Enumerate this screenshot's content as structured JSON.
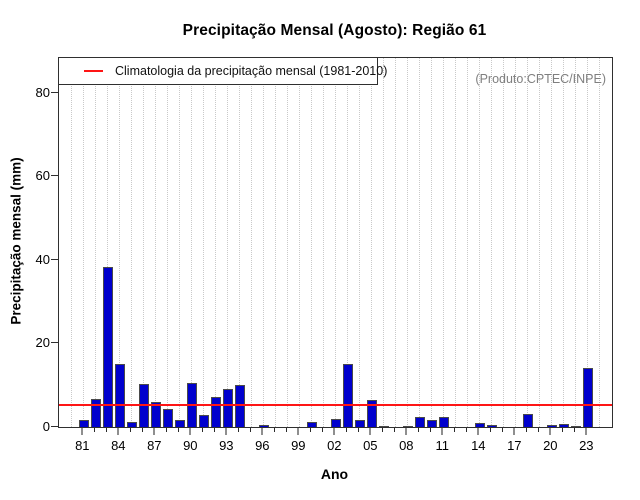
{
  "header": {
    "title": "Precipitação Mensal (Agosto): Região 61"
  },
  "watermark": {
    "text": "(Produto:CPTEC/INPE)"
  },
  "chart_data": {
    "type": "bar",
    "title": "Precipitação Mensal (Agosto): Região 61",
    "xlabel": "Ano",
    "ylabel": "Precipitação mensal (mm)",
    "ylim": [
      0,
      88.4
    ],
    "yticks": [
      0,
      20,
      40,
      60,
      80
    ],
    "grid": "vertical-dotted",
    "legend_position": "top-left",
    "years": [
      1981,
      1982,
      1983,
      1984,
      1985,
      1986,
      1987,
      1988,
      1989,
      1990,
      1991,
      1992,
      1993,
      1994,
      1995,
      1996,
      1997,
      1998,
      1999,
      2000,
      2001,
      2002,
      2003,
      2004,
      2005,
      2006,
      2007,
      2008,
      2009,
      2010,
      2011,
      2012,
      2013,
      2014,
      2015,
      2016,
      2017,
      2018,
      2019,
      2020,
      2021,
      2022,
      2023
    ],
    "values": [
      1.6,
      6.7,
      38.3,
      15.1,
      1.3,
      10.2,
      6.0,
      4.2,
      1.7,
      10.5,
      2.8,
      7.2,
      9.0,
      10.0,
      0,
      0.4,
      0,
      0,
      0,
      1.1,
      0,
      1.9,
      15.2,
      1.8,
      6.4,
      0.15,
      0,
      0.35,
      2.3,
      1.7,
      2.4,
      0,
      0,
      0.9,
      0.5,
      0,
      0,
      3.0,
      0,
      0.5,
      0.8,
      0.1,
      14.2
    ],
    "x_label_every": 3,
    "x_tick_labels": [
      "81",
      "84",
      "87",
      "90",
      "93",
      "96",
      "99",
      "02",
      "05",
      "08",
      "11",
      "14",
      "17",
      "20",
      "23"
    ],
    "climatology": {
      "value": 5.2,
      "label": "Climatologia da precipitação mensal (1981-2010)",
      "color": "#fe1515"
    },
    "colors": {
      "bar_fill": "#0000CD",
      "bar_border": "#4a4a4a",
      "grid": "#c9c9c9",
      "axis": "#2f2f2f",
      "watermark": "#7f7f7f"
    }
  }
}
